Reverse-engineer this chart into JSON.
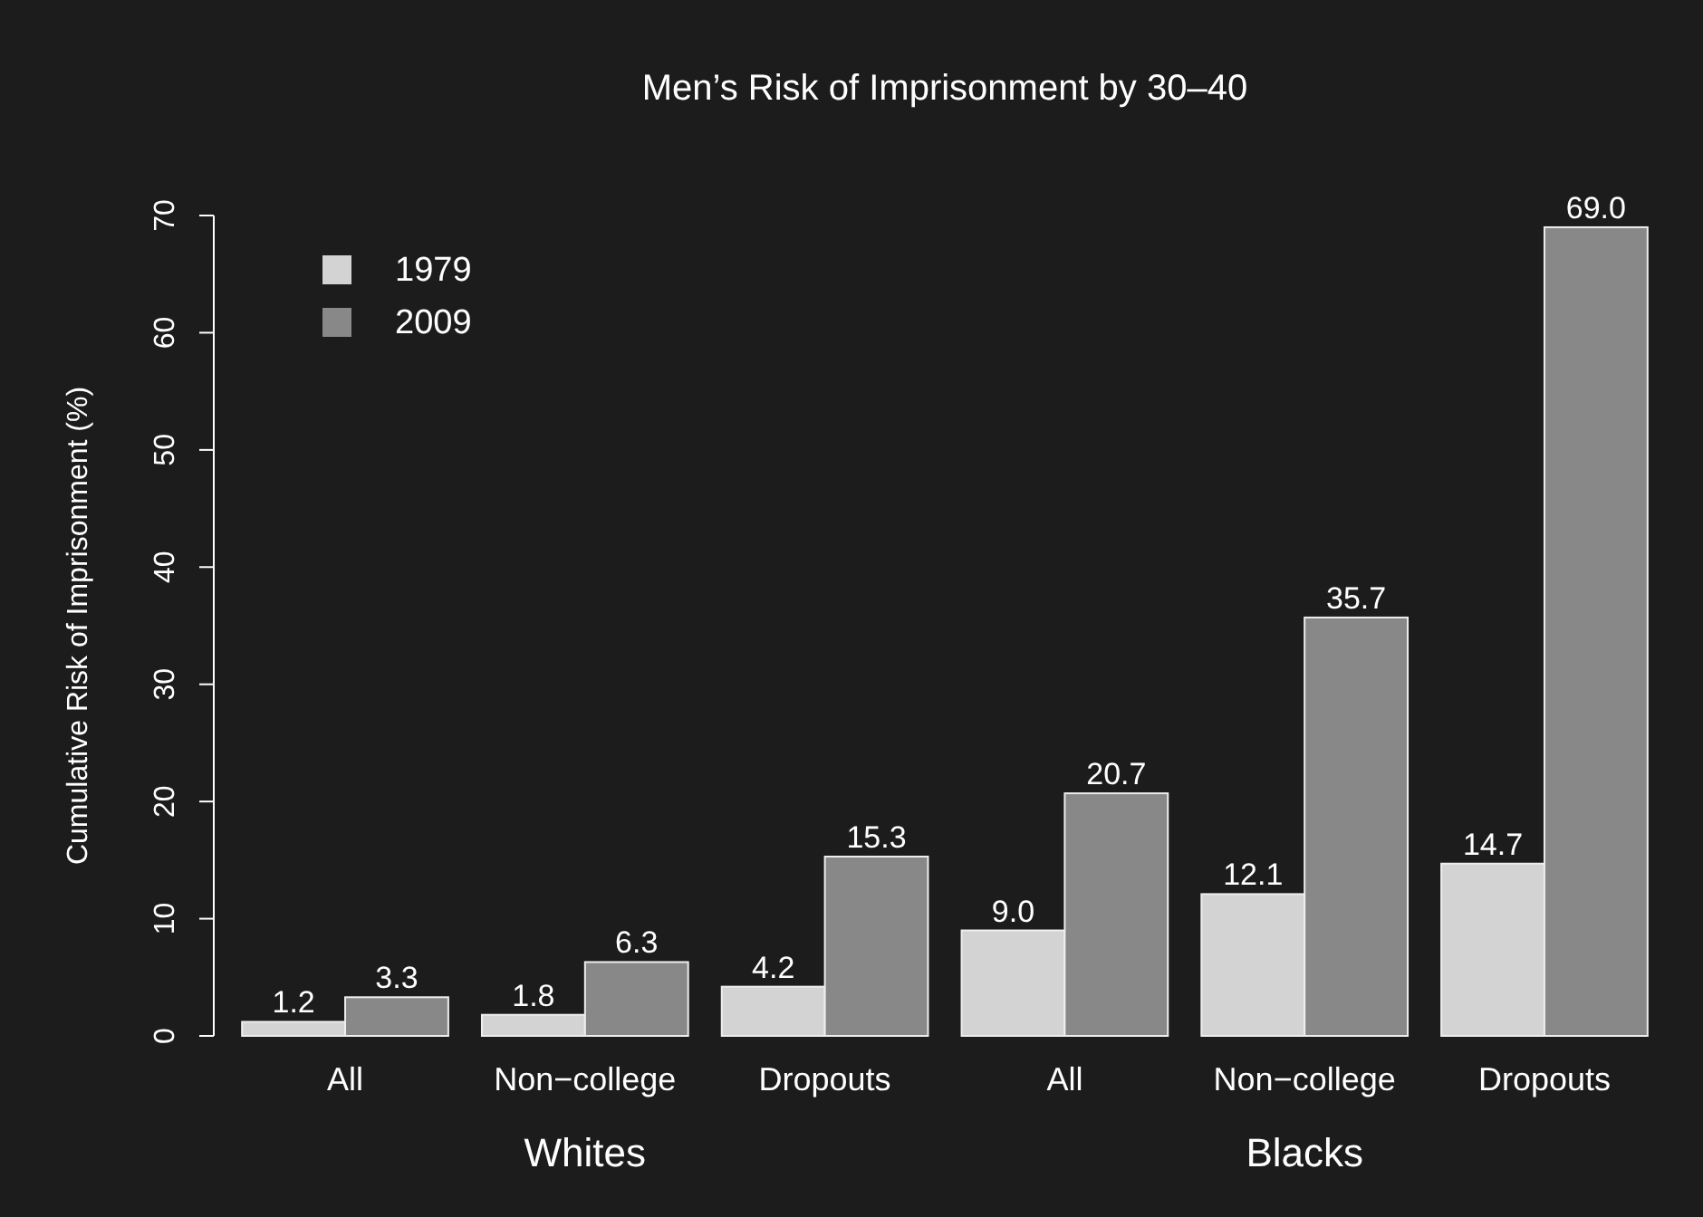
{
  "chart_data": {
    "type": "bar",
    "title": "Men’s Risk of Imprisonment by 30–40",
    "ylabel": "Cumulative Risk of Imprisonment (%)",
    "categories": [
      "All",
      "Non−college",
      "Dropouts",
      "All",
      "Non−college",
      "Dropouts"
    ],
    "series": [
      {
        "name": "1979",
        "color": "#d3d3d3",
        "values": [
          1.2,
          1.8,
          4.2,
          9.0,
          12.1,
          14.7
        ],
        "value_labels": [
          "1.2",
          "1.8",
          "4.2",
          "9.0",
          "12.1",
          "14.7"
        ]
      },
      {
        "name": "2009",
        "color": "#888888",
        "values": [
          3.3,
          6.3,
          15.3,
          20.7,
          35.7,
          69.0
        ],
        "value_labels": [
          "3.3",
          "6.3",
          "15.3",
          "20.7",
          "35.7",
          "69.0"
        ]
      }
    ],
    "annotations": [
      "Whites",
      "Blacks"
    ],
    "ylim": [
      0,
      70
    ],
    "yticks": [
      0,
      10,
      20,
      30,
      40,
      50,
      60,
      70
    ],
    "legend": "top left",
    "grid": false
  }
}
